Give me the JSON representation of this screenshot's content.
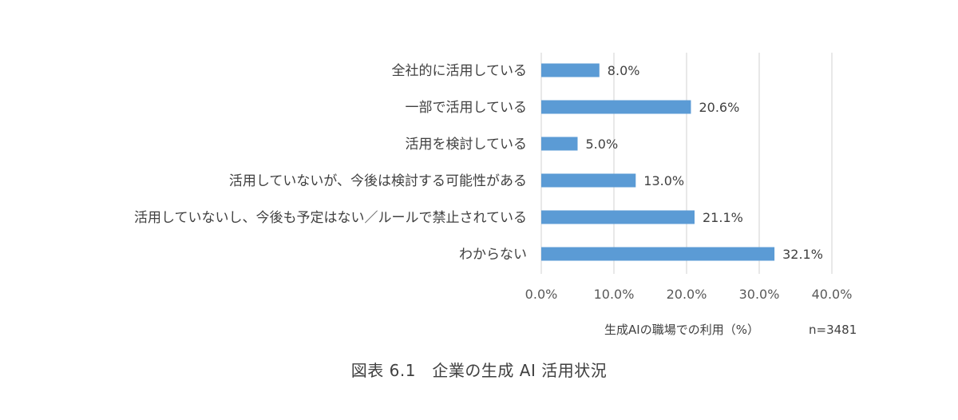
{
  "chart_data": {
    "type": "bar",
    "orientation": "horizontal",
    "categories": [
      "全社的に活用している",
      "一部で活用している",
      "活用を検討している",
      "活用していないが、今後は検討する可能性がある",
      "活用していないし、今後も予定はない／ルールで禁止されている",
      "わからない"
    ],
    "values": [
      8.0,
      20.6,
      5.0,
      13.0,
      21.1,
      32.1
    ],
    "value_labels": [
      "8.0%",
      "20.6%",
      "5.0%",
      "13.0%",
      "21.1%",
      "32.1%"
    ],
    "xlim": [
      0,
      40
    ],
    "xticks": [
      0,
      10,
      20,
      30,
      40
    ],
    "xtick_labels": [
      "0.0%",
      "10.0%",
      "20.0%",
      "30.0%",
      "40.0%"
    ],
    "xlabel": "生成AIの職場での利用（%）",
    "note": "n=3481",
    "grid": true,
    "legend": "none",
    "bar_color": "#5B9BD5",
    "grid_color": "#D9D9D9"
  },
  "caption": "図表 6.1　企業の生成 AI 活用状況"
}
